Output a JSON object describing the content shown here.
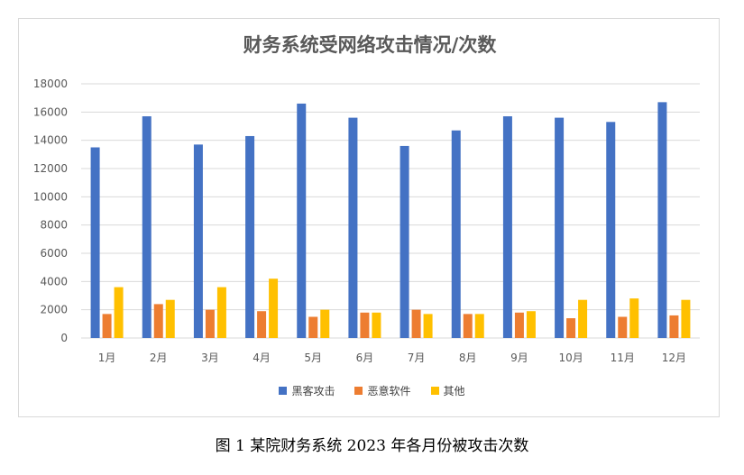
{
  "chart_data": {
    "type": "bar",
    "title": "财务系统受网络攻击情况/次数",
    "categories": [
      "1月",
      "2月",
      "3月",
      "4月",
      "5月",
      "6月",
      "7月",
      "8月",
      "9月",
      "10月",
      "11月",
      "12月"
    ],
    "series": [
      {
        "name": "黑客攻击",
        "color": "#4472c4",
        "values": [
          13500,
          15700,
          13700,
          14300,
          16600,
          15600,
          13600,
          14700,
          15700,
          15600,
          15300,
          16700
        ]
      },
      {
        "name": "恶意软件",
        "color": "#ed7d31",
        "values": [
          1700,
          2400,
          2000,
          1900,
          1500,
          1800,
          2000,
          1700,
          1800,
          1400,
          1500,
          1600
        ]
      },
      {
        "name": "其他",
        "color": "#ffc000",
        "values": [
          3600,
          2700,
          3600,
          4200,
          2000,
          1800,
          1700,
          1700,
          1900,
          2700,
          2800,
          2700
        ]
      }
    ],
    "yticks": [
      "0",
      "2000",
      "4000",
      "6000",
      "8000",
      "10000",
      "12000",
      "14000",
      "16000",
      "18000"
    ],
    "ylim": [
      0,
      18000
    ],
    "grid": true,
    "legend_position": "bottom"
  },
  "caption": "图 1 某院财务系统 2023 年各月份被攻击次数"
}
